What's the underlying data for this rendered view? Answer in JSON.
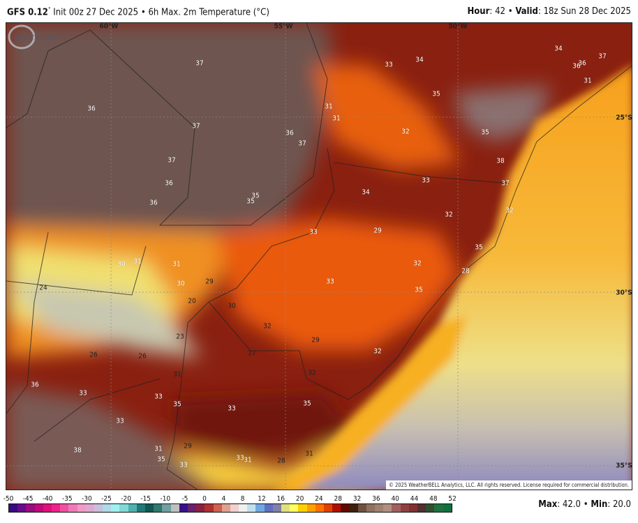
{
  "header": {
    "model": "GFS 0.12",
    "degree": "°",
    "init": "Init 00z 27 Dec 2025",
    "sep": "•",
    "product": "6h Max. 2m Temperature (°C)",
    "hour_label": "Hour",
    "hour_value": "42",
    "valid_label": "Valid",
    "valid_value": "18z Sun 28 Dec 2025"
  },
  "map": {
    "longitude_labels": [
      "60°W",
      "55°W",
      "50°W"
    ],
    "latitude_labels": [
      "25°S",
      "30°S",
      "35°S"
    ],
    "temperature_labels": [
      "37",
      "36",
      "37",
      "37",
      "36",
      "36",
      "35",
      "35",
      "36",
      "37",
      "31",
      "31",
      "33",
      "34",
      "35",
      "32",
      "35",
      "34",
      "36",
      "36",
      "37",
      "31",
      "38",
      "37",
      "32",
      "33",
      "34",
      "32",
      "33",
      "29",
      "35",
      "32",
      "28",
      "33",
      "35",
      "30",
      "31",
      "31",
      "30",
      "29",
      "24",
      "20",
      "30",
      "32",
      "29",
      "23",
      "27",
      "26",
      "26",
      "32",
      "31",
      "32",
      "36",
      "33",
      "33",
      "35",
      "33",
      "35",
      "33",
      "31",
      "29",
      "38",
      "35",
      "33",
      "33",
      "31",
      "28",
      "31"
    ],
    "copyright": "© 2025 WeatherBELL Analytics, LLC. All rights reserved. License required for commercial distribution.",
    "logo_text": "WeatherBELL"
  },
  "colorbar": {
    "ticks": [
      "-50",
      "-45",
      "-40",
      "-35",
      "-30",
      "-25",
      "-20",
      "-15",
      "-10",
      "-5",
      "0",
      "4",
      "8",
      "12",
      "16",
      "20",
      "24",
      "28",
      "32",
      "36",
      "40",
      "44",
      "48",
      "52"
    ],
    "colors": [
      "#3a0a80",
      "#6a0a8a",
      "#9a0a80",
      "#c00a78",
      "#e0107a",
      "#f0208a",
      "#f050a0",
      "#f07ab8",
      "#f09ac8",
      "#e0a8d0",
      "#c8c0dc",
      "#b0d8e8",
      "#a0f0f0",
      "#80d8d8",
      "#50b0b0",
      "#207878",
      "#105850",
      "#307870",
      "#70a0a0",
      "#c0c0c0",
      "#3a108a",
      "#6a2070",
      "#8a2040",
      "#b03030",
      "#d06050",
      "#e0a090",
      "#f0d0d0",
      "#f0f0f0",
      "#c0e0f0",
      "#70a8e0",
      "#6070c0",
      "#8080a8",
      "#e0e080",
      "#ffff60",
      "#ffd000",
      "#ffa000",
      "#ff7000",
      "#e04000",
      "#b01000",
      "#600a00",
      "#402010",
      "#705040",
      "#907060",
      "#a08070",
      "#b09080",
      "#a06060",
      "#904040",
      "#803030",
      "#503030",
      "#305030",
      "#207040",
      "#107040"
    ]
  },
  "footer": {
    "max_label": "Max",
    "max_value": "42.0",
    "min_label": "Min",
    "min_value": "20.0"
  }
}
